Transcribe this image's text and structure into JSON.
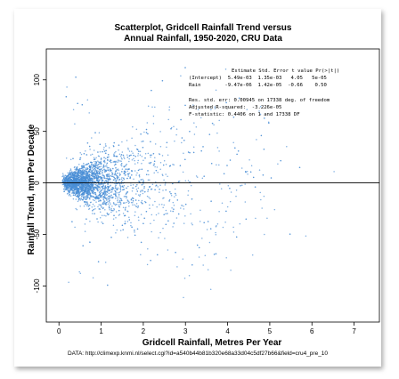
{
  "chart_data": {
    "type": "scatter",
    "title": "Scatterplot, Gridcell Rainfall Trend versus",
    "subtitle": "Annual Rainfall, 1950-2020, CRU Data",
    "xlabel": "Gridcell Rainfall, Metres Per Year",
    "ylabel": "Rainfall Trend, mm Per Decade",
    "xlim": [
      -0.3,
      7.6
    ],
    "ylim": [
      -135,
      130
    ],
    "x_ticks": [
      0,
      1,
      2,
      3,
      4,
      5,
      6,
      7
    ],
    "y_ticks": [
      -100,
      -50,
      0,
      50,
      100
    ],
    "point_color": "#4a8fd6",
    "reference_line": 0,
    "caption": "DATA: http://climexp.knmi.nl/select.cgi?id=a540b44b81b320e68a33d04c5df27b66&field=cru4_pre_10",
    "stats_table": {
      "header": "Estimate Std. Error t value Pr(>|t|)",
      "rows": [
        "(Intercept)  5.49e-03  1.35e-03   4.05   5e-05",
        "Rain        -9.47e-06  1.42e-05  -0.66    0.50"
      ],
      "lines": [
        "Res. std. err: 0.00945 on 17338 deg. of freedom",
        "Adjusted R-squared:  -3.226e-05",
        "F-statistic: 0.4406 on 1 and 17338 DF"
      ]
    },
    "n_points_approx": 17340
  }
}
